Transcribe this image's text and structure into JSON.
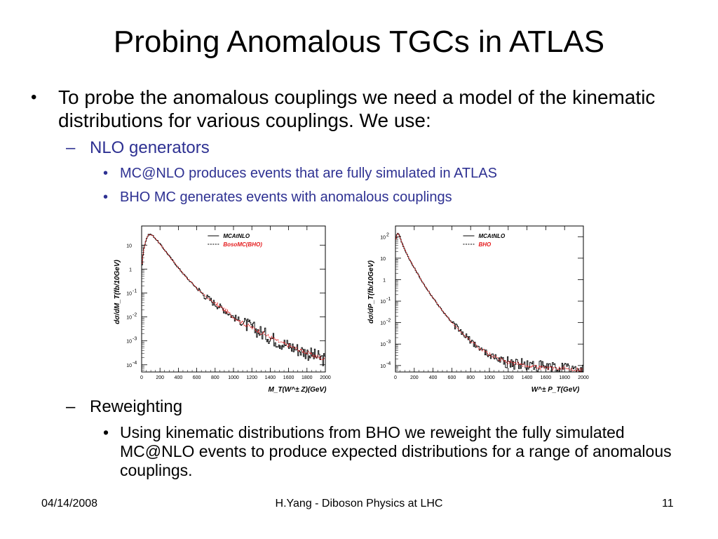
{
  "slide": {
    "title": "Probing Anomalous TGCs in ATLAS",
    "bullet_main": "To probe the anomalous couplings we need a model of the kinematic distributions for various couplings. We use:",
    "sub1": {
      "label": "NLO generators",
      "items": [
        "MC@NLO produces events that are fully simulated in ATLAS",
        "BHO MC generates events with anomalous couplings"
      ]
    },
    "sub2": {
      "label": "Reweighting",
      "items": [
        "Using kinematic distributions from BHO we reweight the fully simulated MC@NLO events to produce expected distributions for a range of anomalous couplings."
      ]
    },
    "footer": {
      "date": "04/14/2008",
      "center": "H.Yang - Diboson Physics at LHC",
      "page": "11"
    },
    "markers": {
      "bullet": "•",
      "dash": "–"
    }
  },
  "colors": {
    "sub_text": "#2e3192",
    "series_black": "#000000",
    "series_red": "#e41a1c"
  },
  "chart_data": [
    {
      "type": "line",
      "xlabel": "M_T(W^± Z)(GeV)",
      "ylabel": "dσ/dM_T(fb/10GeV)",
      "xlim": [
        0,
        2000
      ],
      "y_scale": "log",
      "ylim_log10": [
        -4.3,
        1.8
      ],
      "x_ticks": [
        "0",
        "200",
        "400",
        "600",
        "800",
        "1000",
        "1200",
        "1400",
        "1600",
        "1800",
        "2000"
      ],
      "y_ticks": [
        {
          "label": "10",
          "sup": ""
        },
        {
          "label": "1",
          "sup": ""
        },
        {
          "label": "10",
          "sup": "-1"
        },
        {
          "label": "10",
          "sup": "-2"
        },
        {
          "label": "10",
          "sup": "-3"
        },
        {
          "label": "10",
          "sup": "-4"
        }
      ],
      "legend_position": "top-right",
      "series": [
        {
          "name": "MCAtNLO",
          "color": "#000000",
          "style": "solid"
        },
        {
          "name": "BosoMC(BHO)",
          "color": "#e41a1c",
          "style": "dashed"
        }
      ],
      "shape": {
        "x": [
          0,
          20,
          40,
          60,
          80,
          100,
          120,
          150,
          200,
          300,
          400,
          500,
          600,
          700,
          800,
          900,
          1000,
          1100,
          1200,
          1300,
          1400,
          1500,
          1600,
          1700,
          1800,
          1900,
          2000
        ],
        "log10y": [
          0.0,
          0.8,
          1.1,
          1.35,
          1.45,
          1.45,
          1.4,
          1.28,
          1.05,
          0.55,
          0.05,
          -0.4,
          -0.8,
          -1.15,
          -1.45,
          -1.7,
          -2.0,
          -2.25,
          -2.45,
          -2.65,
          -2.85,
          -3.05,
          -3.2,
          -3.35,
          -3.5,
          -3.65,
          -3.8
        ]
      }
    },
    {
      "type": "line",
      "xlabel": "W^± P_T(GeV)",
      "ylabel": "dσ/dP_T(fb/10GeV)",
      "xlim": [
        0,
        2000
      ],
      "y_scale": "log",
      "ylim_log10": [
        -4.3,
        2.5
      ],
      "x_ticks": [
        "0",
        "200",
        "400",
        "600",
        "800",
        "1000",
        "1200",
        "1400",
        "1600",
        "1800",
        "2000"
      ],
      "y_ticks": [
        {
          "label": "10",
          "sup": "2"
        },
        {
          "label": "10",
          "sup": ""
        },
        {
          "label": "1",
          "sup": ""
        },
        {
          "label": "10",
          "sup": "-1"
        },
        {
          "label": "10",
          "sup": "-2"
        },
        {
          "label": "10",
          "sup": "-3"
        },
        {
          "label": "10",
          "sup": "-4"
        }
      ],
      "legend_position": "top-right",
      "series": [
        {
          "name": "MCAtNLO",
          "color": "#000000",
          "style": "solid"
        },
        {
          "name": "BHO",
          "color": "#e41a1c",
          "style": "dashed"
        }
      ],
      "shape": {
        "x": [
          0,
          20,
          40,
          60,
          100,
          150,
          200,
          300,
          400,
          500,
          600,
          700,
          800,
          900,
          1000,
          1100,
          1200,
          1400,
          1600,
          1800,
          2000
        ],
        "log10y": [
          1.8,
          2.2,
          2.1,
          1.8,
          1.4,
          0.95,
          0.55,
          -0.2,
          -0.85,
          -1.45,
          -2.0,
          -2.45,
          -2.85,
          -3.2,
          -3.5,
          -3.7,
          -3.85,
          -4.0,
          -4.1,
          -4.15,
          -4.2
        ]
      }
    }
  ]
}
